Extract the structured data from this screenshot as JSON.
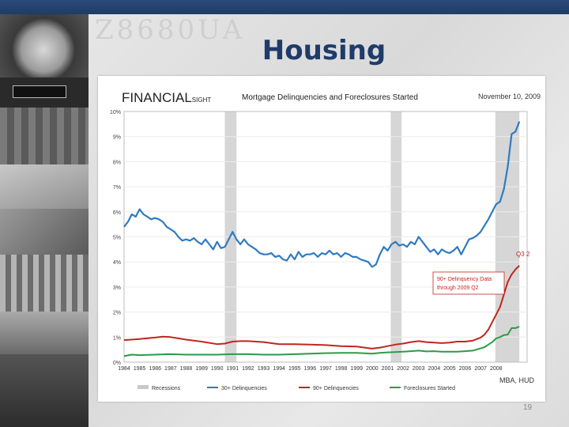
{
  "slide": {
    "title": "Housing",
    "page_number": "19"
  },
  "panel": {
    "brand_main": "FINANCIAL",
    "brand_sub": "SIGHT",
    "date": "November 10, 2009",
    "source": "MBA, HUD"
  },
  "colors": {
    "title_blue": "#1f3b6a",
    "total_delinquency": "#2f7bc0",
    "delinquency_90": "#c0261f",
    "foreclosures": "#2d9a4a",
    "recession": "#c8c8c8"
  },
  "chart_data": {
    "type": "line",
    "title": "Mortgage Delinquencies and Foreclosures Started",
    "xlabel": "",
    "ylabel": "",
    "ylim": [
      0,
      10
    ],
    "xlim": [
      1984,
      2010
    ],
    "grid": true,
    "legend_position": "bottom",
    "yticks": [
      "0%",
      "1%",
      "2%",
      "3%",
      "4%",
      "5%",
      "6%",
      "7%",
      "8%",
      "9%",
      "10%"
    ],
    "xticks": [
      "1984",
      "1985",
      "1986",
      "1987",
      "1988",
      "1989",
      "1990",
      "1991",
      "1992",
      "1993",
      "1994",
      "1995",
      "1996",
      "1997",
      "1998",
      "1999",
      "2000",
      "2001",
      "2002",
      "2003",
      "2004",
      "2005",
      "2006",
      "2007",
      "2008"
    ],
    "recessions": [
      [
        1990.5,
        1991.25
      ],
      [
        2001.2,
        2001.9
      ],
      [
        2007.95,
        2009.5
      ]
    ],
    "series": [
      {
        "name": "30+ Delinquencies",
        "key": "total",
        "points": [
          [
            1984.0,
            5.4
          ],
          [
            1984.25,
            5.6
          ],
          [
            1984.5,
            5.9
          ],
          [
            1984.75,
            5.8
          ],
          [
            1985.0,
            6.1
          ],
          [
            1985.25,
            5.9
          ],
          [
            1985.5,
            5.8
          ],
          [
            1985.75,
            5.7
          ],
          [
            1986.0,
            5.75
          ],
          [
            1986.25,
            5.7
          ],
          [
            1986.5,
            5.6
          ],
          [
            1986.75,
            5.4
          ],
          [
            1987.0,
            5.3
          ],
          [
            1987.25,
            5.2
          ],
          [
            1987.5,
            5.0
          ],
          [
            1987.75,
            4.85
          ],
          [
            1988.0,
            4.9
          ],
          [
            1988.25,
            4.85
          ],
          [
            1988.5,
            4.95
          ],
          [
            1988.75,
            4.8
          ],
          [
            1989.0,
            4.7
          ],
          [
            1989.25,
            4.9
          ],
          [
            1989.5,
            4.7
          ],
          [
            1989.75,
            4.5
          ],
          [
            1990.0,
            4.8
          ],
          [
            1990.25,
            4.55
          ],
          [
            1990.5,
            4.6
          ],
          [
            1990.75,
            4.9
          ],
          [
            1991.0,
            5.2
          ],
          [
            1991.25,
            4.9
          ],
          [
            1991.5,
            4.7
          ],
          [
            1991.75,
            4.9
          ],
          [
            1992.0,
            4.7
          ],
          [
            1992.25,
            4.6
          ],
          [
            1992.5,
            4.5
          ],
          [
            1992.75,
            4.35
          ],
          [
            1993.0,
            4.3
          ],
          [
            1993.25,
            4.3
          ],
          [
            1993.5,
            4.35
          ],
          [
            1993.75,
            4.2
          ],
          [
            1994.0,
            4.25
          ],
          [
            1994.25,
            4.1
          ],
          [
            1994.5,
            4.05
          ],
          [
            1994.75,
            4.3
          ],
          [
            1995.0,
            4.1
          ],
          [
            1995.25,
            4.4
          ],
          [
            1995.5,
            4.2
          ],
          [
            1995.75,
            4.3
          ],
          [
            1996.0,
            4.3
          ],
          [
            1996.25,
            4.35
          ],
          [
            1996.5,
            4.2
          ],
          [
            1996.75,
            4.35
          ],
          [
            1997.0,
            4.3
          ],
          [
            1997.25,
            4.45
          ],
          [
            1997.5,
            4.3
          ],
          [
            1997.75,
            4.35
          ],
          [
            1998.0,
            4.2
          ],
          [
            1998.25,
            4.35
          ],
          [
            1998.5,
            4.3
          ],
          [
            1998.75,
            4.2
          ],
          [
            1999.0,
            4.2
          ],
          [
            1999.25,
            4.1
          ],
          [
            1999.5,
            4.05
          ],
          [
            1999.75,
            4.0
          ],
          [
            2000.0,
            3.8
          ],
          [
            2000.25,
            3.9
          ],
          [
            2000.5,
            4.3
          ],
          [
            2000.75,
            4.6
          ],
          [
            2001.0,
            4.45
          ],
          [
            2001.25,
            4.7
          ],
          [
            2001.5,
            4.8
          ],
          [
            2001.75,
            4.65
          ],
          [
            2002.0,
            4.7
          ],
          [
            2002.25,
            4.6
          ],
          [
            2002.5,
            4.8
          ],
          [
            2002.75,
            4.7
          ],
          [
            2003.0,
            5.0
          ],
          [
            2003.25,
            4.8
          ],
          [
            2003.5,
            4.6
          ],
          [
            2003.75,
            4.4
          ],
          [
            2004.0,
            4.5
          ],
          [
            2004.25,
            4.3
          ],
          [
            2004.5,
            4.5
          ],
          [
            2004.75,
            4.4
          ],
          [
            2005.0,
            4.35
          ],
          [
            2005.25,
            4.45
          ],
          [
            2005.5,
            4.6
          ],
          [
            2005.75,
            4.3
          ],
          [
            2006.0,
            4.6
          ],
          [
            2006.25,
            4.9
          ],
          [
            2006.5,
            4.95
          ],
          [
            2006.75,
            5.05
          ],
          [
            2007.0,
            5.2
          ],
          [
            2007.25,
            5.45
          ],
          [
            2007.5,
            5.7
          ],
          [
            2007.75,
            6.0
          ],
          [
            2008.0,
            6.3
          ],
          [
            2008.25,
            6.4
          ],
          [
            2008.5,
            6.9
          ],
          [
            2008.75,
            7.8
          ],
          [
            2009.0,
            9.1
          ],
          [
            2009.25,
            9.2
          ],
          [
            2009.5,
            9.6
          ]
        ]
      },
      {
        "name": "90+ Delinquencies",
        "key": "d90",
        "points": [
          [
            1984.0,
            0.88
          ],
          [
            1985.0,
            0.92
          ],
          [
            1986.0,
            0.98
          ],
          [
            1986.5,
            1.02
          ],
          [
            1987.0,
            1.0
          ],
          [
            1988.0,
            0.9
          ],
          [
            1989.0,
            0.82
          ],
          [
            1990.0,
            0.72
          ],
          [
            1990.5,
            0.74
          ],
          [
            1991.0,
            0.82
          ],
          [
            1991.5,
            0.84
          ],
          [
            1992.0,
            0.84
          ],
          [
            1993.0,
            0.8
          ],
          [
            1994.0,
            0.72
          ],
          [
            1995.0,
            0.72
          ],
          [
            1996.0,
            0.7
          ],
          [
            1997.0,
            0.68
          ],
          [
            1998.0,
            0.64
          ],
          [
            1999.0,
            0.62
          ],
          [
            2000.0,
            0.54
          ],
          [
            2000.5,
            0.58
          ],
          [
            2001.0,
            0.64
          ],
          [
            2001.5,
            0.7
          ],
          [
            2002.0,
            0.74
          ],
          [
            2002.5,
            0.8
          ],
          [
            2003.0,
            0.84
          ],
          [
            2003.5,
            0.8
          ],
          [
            2004.0,
            0.78
          ],
          [
            2004.5,
            0.76
          ],
          [
            2005.0,
            0.78
          ],
          [
            2005.5,
            0.82
          ],
          [
            2006.0,
            0.82
          ],
          [
            2006.5,
            0.86
          ],
          [
            2007.0,
            0.98
          ],
          [
            2007.25,
            1.1
          ],
          [
            2007.5,
            1.3
          ],
          [
            2007.75,
            1.6
          ],
          [
            2008.0,
            1.9
          ],
          [
            2008.25,
            2.2
          ],
          [
            2008.5,
            2.7
          ],
          [
            2008.75,
            3.2
          ],
          [
            2009.0,
            3.5
          ],
          [
            2009.25,
            3.7
          ],
          [
            2009.5,
            3.85
          ]
        ]
      },
      {
        "name": "Foreclosures Started",
        "key": "fc",
        "points": [
          [
            1984.0,
            0.24
          ],
          [
            1984.5,
            0.3
          ],
          [
            1985.0,
            0.28
          ],
          [
            1986.0,
            0.3
          ],
          [
            1987.0,
            0.32
          ],
          [
            1988.0,
            0.3
          ],
          [
            1989.0,
            0.3
          ],
          [
            1990.0,
            0.3
          ],
          [
            1991.0,
            0.32
          ],
          [
            1992.0,
            0.32
          ],
          [
            1993.0,
            0.3
          ],
          [
            1994.0,
            0.3
          ],
          [
            1995.0,
            0.32
          ],
          [
            1996.0,
            0.34
          ],
          [
            1997.0,
            0.36
          ],
          [
            1998.0,
            0.37
          ],
          [
            1999.0,
            0.37
          ],
          [
            2000.0,
            0.34
          ],
          [
            2000.5,
            0.37
          ],
          [
            2001.0,
            0.39
          ],
          [
            2001.5,
            0.4
          ],
          [
            2002.0,
            0.42
          ],
          [
            2002.5,
            0.44
          ],
          [
            2003.0,
            0.46
          ],
          [
            2003.5,
            0.43
          ],
          [
            2004.0,
            0.44
          ],
          [
            2004.5,
            0.42
          ],
          [
            2005.0,
            0.42
          ],
          [
            2005.5,
            0.42
          ],
          [
            2006.0,
            0.44
          ],
          [
            2006.5,
            0.46
          ],
          [
            2007.0,
            0.55
          ],
          [
            2007.25,
            0.6
          ],
          [
            2007.5,
            0.7
          ],
          [
            2007.75,
            0.8
          ],
          [
            2008.0,
            0.95
          ],
          [
            2008.25,
            1.0
          ],
          [
            2008.5,
            1.08
          ],
          [
            2008.75,
            1.1
          ],
          [
            2009.0,
            1.36
          ],
          [
            2009.25,
            1.36
          ],
          [
            2009.5,
            1.42
          ]
        ]
      }
    ],
    "legend": [
      "Recessions",
      "30+ Delinquencies",
      "90+ Delinquencies",
      "Foreclosures Started"
    ],
    "annotations": [
      {
        "text_lines": [
          "90+ Delinquency Data",
          "through 2009 Q2"
        ],
        "color": "#c0261f"
      },
      {
        "text": "Q3 2",
        "color": "#c0261f"
      }
    ]
  }
}
